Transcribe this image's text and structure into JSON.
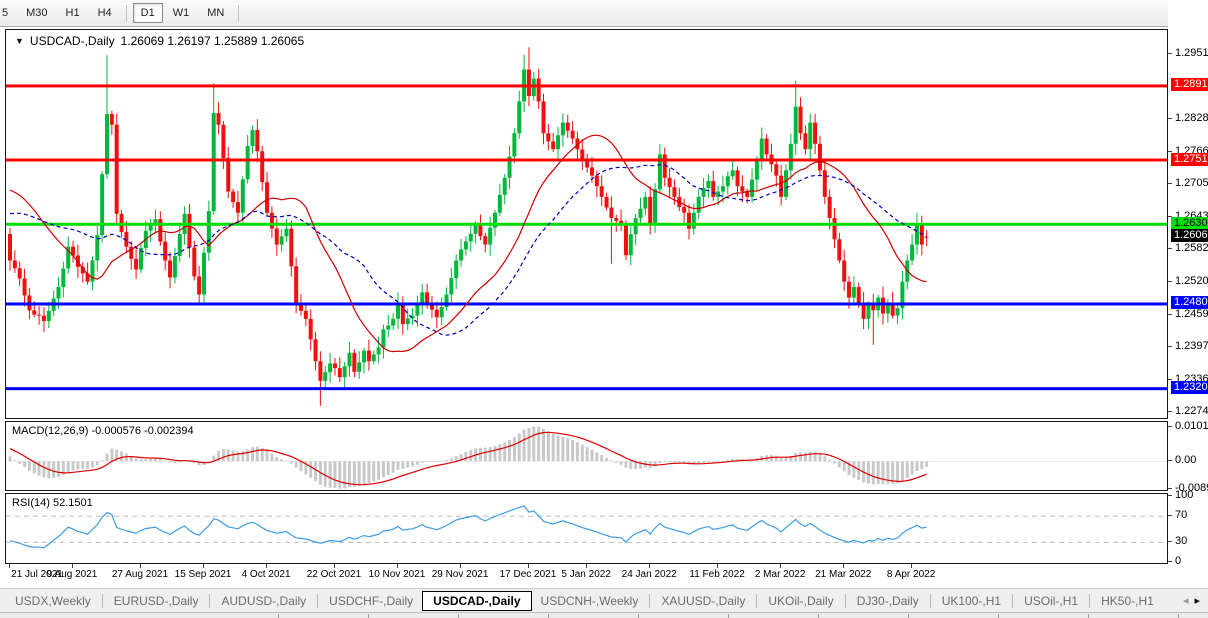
{
  "toolbar": {
    "timeframes": [
      {
        "label": "5",
        "active": false
      },
      {
        "label": "M30",
        "active": false
      },
      {
        "label": "H1",
        "active": false
      },
      {
        "label": "H4",
        "active": false
      },
      {
        "label": "D1",
        "active": true
      },
      {
        "label": "W1",
        "active": false
      },
      {
        "label": "MN",
        "active": false
      }
    ]
  },
  "chart_header": {
    "dropdown_icon": "▼",
    "symbol_title": "USDCAD-,Daily",
    "ohlc_text": "1.26069 1.26197 1.25889 1.26065"
  },
  "chart_data": {
    "type": "candlestick",
    "symbol": "USDCAD",
    "timeframe": "Daily",
    "bar_count": 190,
    "last_candle": {
      "open": 1.26069,
      "high": 1.26197,
      "low": 1.25889,
      "close": 1.26065
    },
    "price_axis_ticks": [
      1.2951,
      1.2828,
      1.27665,
      1.2705,
      1.26435,
      1.2582,
      1.25205,
      1.2459,
      1.23975,
      1.2336,
      1.22745
    ],
    "price_labels": [
      {
        "price": 1.28912,
        "bg": "#ff0000",
        "fg": "#ffffff",
        "role": "resistance"
      },
      {
        "price": 1.27515,
        "bg": "#ff0000",
        "fg": "#ffffff",
        "role": "resistance"
      },
      {
        "price": 1.26303,
        "bg": "#00df00",
        "fg": "#000000",
        "role": "support"
      },
      {
        "price": 1.26065,
        "bg": "#000000",
        "fg": "#ffffff",
        "role": "last-price"
      },
      {
        "price": 1.248,
        "bg": "#0000ff",
        "fg": "#ffffff",
        "role": "support"
      },
      {
        "price": 1.23203,
        "bg": "#0000ff",
        "fg": "#ffffff",
        "role": "support"
      }
    ],
    "hlines": [
      {
        "price": 1.28912,
        "color": "#ff0000",
        "width": 3
      },
      {
        "price": 1.27515,
        "color": "#ff0000",
        "width": 3
      },
      {
        "price": 1.26303,
        "color": "#00dd00",
        "width": 3
      },
      {
        "price": 1.248,
        "color": "#0000ff",
        "width": 3
      },
      {
        "price": 1.23203,
        "color": "#0000ff",
        "width": 3
      }
    ],
    "date_labels": [
      {
        "text": "21 Jul 2021",
        "day": 0
      },
      {
        "text": "9 Aug 2021",
        "day": 13
      },
      {
        "text": "27 Aug 2021",
        "day": 27
      },
      {
        "text": "15 Sep 2021",
        "day": 40
      },
      {
        "text": "4 Oct 2021",
        "day": 53
      },
      {
        "text": "22 Oct 2021",
        "day": 67
      },
      {
        "text": "10 Nov 2021",
        "day": 80
      },
      {
        "text": "29 Nov 2021",
        "day": 93
      },
      {
        "text": "17 Dec 2021",
        "day": 107
      },
      {
        "text": "5 Jan 2022",
        "day": 119
      },
      {
        "text": "24 Jan 2022",
        "day": 132
      },
      {
        "text": "11 Feb 2022",
        "day": 146
      },
      {
        "text": "2 Mar 2022",
        "day": 159
      },
      {
        "text": "21 Mar 2022",
        "day": 172
      },
      {
        "text": "8 Apr 2022",
        "day": 186
      }
    ],
    "candle_colors": {
      "up": "#00b93c",
      "down": "#ef1010"
    },
    "moving_averages": [
      {
        "period": 20,
        "color": "#cc0000",
        "dash": ""
      },
      {
        "period": 32,
        "color": "#0000bb",
        "dash": "4,3"
      }
    ],
    "close_keyframes": [
      [
        0,
        1.2562
      ],
      [
        2,
        1.2528
      ],
      [
        4,
        1.2468
      ],
      [
        7,
        1.2448
      ],
      [
        10,
        1.2512
      ],
      [
        12,
        1.2588
      ],
      [
        14,
        1.255
      ],
      [
        16,
        1.2522
      ],
      [
        18,
        1.261
      ],
      [
        20,
        1.2838
      ],
      [
        21,
        1.2818
      ],
      [
        22,
        1.265
      ],
      [
        24,
        1.2588
      ],
      [
        26,
        1.2545
      ],
      [
        28,
        1.2618
      ],
      [
        30,
        1.264
      ],
      [
        32,
        1.2562
      ],
      [
        33,
        1.253
      ],
      [
        35,
        1.2612
      ],
      [
        36,
        1.265
      ],
      [
        38,
        1.2532
      ],
      [
        39,
        1.2498
      ],
      [
        41,
        1.2655
      ],
      [
        42,
        1.284
      ],
      [
        43,
        1.2818
      ],
      [
        45,
        1.2692
      ],
      [
        47,
        1.2652
      ],
      [
        49,
        1.2778
      ],
      [
        50,
        1.2808
      ],
      [
        51,
        1.2768
      ],
      [
        53,
        1.2652
      ],
      [
        55,
        1.2592
      ],
      [
        57,
        1.2622
      ],
      [
        59,
        1.2482
      ],
      [
        61,
        1.2452
      ],
      [
        63,
        1.2372
      ],
      [
        64,
        1.2335
      ],
      [
        66,
        1.2368
      ],
      [
        68,
        1.2342
      ],
      [
        70,
        1.2388
      ],
      [
        71,
        1.2352
      ],
      [
        73,
        1.2392
      ],
      [
        74,
        1.2372
      ],
      [
        76,
        1.2398
      ],
      [
        77,
        1.2432
      ],
      [
        79,
        1.2452
      ],
      [
        80,
        1.2482
      ],
      [
        81,
        1.2442
      ],
      [
        83,
        1.2458
      ],
      [
        85,
        1.2502
      ],
      [
        86,
        1.2478
      ],
      [
        88,
        1.2455
      ],
      [
        90,
        1.2498
      ],
      [
        92,
        1.2562
      ],
      [
        94,
        1.2598
      ],
      [
        96,
        1.2628
      ],
      [
        98,
        1.2592
      ],
      [
        100,
        1.2652
      ],
      [
        102,
        1.2718
      ],
      [
        104,
        1.2802
      ],
      [
        105,
        1.2862
      ],
      [
        106,
        1.2922
      ],
      [
        107,
        1.2872
      ],
      [
        108,
        1.2905
      ],
      [
        109,
        1.2862
      ],
      [
        110,
        1.2802
      ],
      [
        112,
        1.2772
      ],
      [
        114,
        1.2822
      ],
      [
        116,
        1.2792
      ],
      [
        118,
        1.2752
      ],
      [
        120,
        1.2722
      ],
      [
        122,
        1.2682
      ],
      [
        124,
        1.2642
      ],
      [
        126,
        1.2632
      ],
      [
        127,
        1.2572
      ],
      [
        129,
        1.2642
      ],
      [
        131,
        1.2682
      ],
      [
        132,
        1.2632
      ],
      [
        134,
        1.2762
      ],
      [
        135,
        1.2718
      ],
      [
        137,
        1.2682
      ],
      [
        139,
        1.2652
      ],
      [
        140,
        1.2622
      ],
      [
        142,
        1.2682
      ],
      [
        144,
        1.2712
      ],
      [
        145,
        1.2682
      ],
      [
        147,
        1.2702
      ],
      [
        149,
        1.2732
      ],
      [
        150,
        1.2702
      ],
      [
        152,
        1.2682
      ],
      [
        154,
        1.2752
      ],
      [
        155,
        1.2792
      ],
      [
        156,
        1.2762
      ],
      [
        158,
        1.2722
      ],
      [
        159,
        1.2682
      ],
      [
        160,
        1.2732
      ],
      [
        161,
        1.2782
      ],
      [
        162,
        1.2852
      ],
      [
        163,
        1.2802
      ],
      [
        164,
        1.2772
      ],
      [
        165,
        1.2822
      ],
      [
        166,
        1.2782
      ],
      [
        167,
        1.2732
      ],
      [
        168,
        1.2682
      ],
      [
        169,
        1.2642
      ],
      [
        170,
        1.2602
      ],
      [
        171,
        1.2562
      ],
      [
        172,
        1.2522
      ],
      [
        173,
        1.2492
      ],
      [
        174,
        1.2512
      ],
      [
        175,
        1.2482
      ],
      [
        176,
        1.2452
      ],
      [
        177,
        1.2478
      ],
      [
        178,
        1.2468
      ],
      [
        179,
        1.2492
      ],
      [
        180,
        1.2462
      ],
      [
        181,
        1.2482
      ],
      [
        182,
        1.2458
      ],
      [
        183,
        1.2472
      ],
      [
        184,
        1.2522
      ],
      [
        185,
        1.2562
      ],
      [
        186,
        1.2592
      ],
      [
        187,
        1.2628
      ],
      [
        188,
        1.2592
      ],
      [
        189,
        1.26065
      ]
    ],
    "prehistory_keyframes": [
      [
        -50,
        1.2545
      ],
      [
        -38,
        1.2475
      ],
      [
        -24,
        1.2585
      ],
      [
        -10,
        1.2725
      ],
      [
        -5,
        1.279
      ],
      [
        -1,
        1.2612
      ]
    ],
    "wick_overrides": [
      {
        "i": 20,
        "high": 1.2949
      },
      {
        "i": 42,
        "high": 1.2896
      },
      {
        "i": 64,
        "low": 1.2288
      },
      {
        "i": 106,
        "high": 1.295
      },
      {
        "i": 107,
        "high": 1.2964
      },
      {
        "i": 124,
        "low": 1.2556
      },
      {
        "i": 162,
        "high": 1.2901
      },
      {
        "i": 178,
        "low": 1.2403
      },
      {
        "i": 187,
        "high": 1.2652
      }
    ],
    "macd_panel": {
      "label": "MACD(12,26,9)",
      "value_main": "-0.000576",
      "value_signal": "-0.002394",
      "params": {
        "fast": 12,
        "slow": 26,
        "signal": 9
      },
      "axis_ticks": [
        {
          "text": "0.010127",
          "value": 0.010127
        },
        {
          "text": "0.00",
          "value": 0
        },
        {
          "text": "-0.008935",
          "value": -0.008935
        }
      ],
      "bar_color": "#c9c9c9",
      "signal_color": "#dd0000"
    },
    "rsi_panel": {
      "label": "RSI(14)",
      "value": "52.1501",
      "period": 14,
      "axis_ticks": [
        {
          "text": "100",
          "value": 100
        },
        {
          "text": "70",
          "value": 70
        },
        {
          "text": "30",
          "value": 30
        },
        {
          "text": "0",
          "value": 0
        }
      ],
      "levels": [
        70,
        30
      ],
      "line_color": "#3d9ce8",
      "level_color": "#bdbdbd"
    }
  },
  "tab_bar": {
    "scroll_left_icon": "◂",
    "scroll_right_icon": "▸",
    "tabs": [
      {
        "label": "USDX,Weekly",
        "active": false
      },
      {
        "label": "EURUSD-,Daily",
        "active": false
      },
      {
        "label": "AUDUSD-,Daily",
        "active": false
      },
      {
        "label": "USDCHF-,Daily",
        "active": false
      },
      {
        "label": "USDCAD-,Daily",
        "active": true
      },
      {
        "label": "USDCNH-,Weekly",
        "active": false
      },
      {
        "label": "XAUUSD-,Daily",
        "active": false
      },
      {
        "label": "UKOil-,Daily",
        "active": false
      },
      {
        "label": "DJ30-,Daily",
        "active": false
      },
      {
        "label": "UK100-,H1",
        "active": false
      },
      {
        "label": "USOil-,H1",
        "active": false
      },
      {
        "label": "HK50-,H1",
        "active": false
      }
    ]
  }
}
